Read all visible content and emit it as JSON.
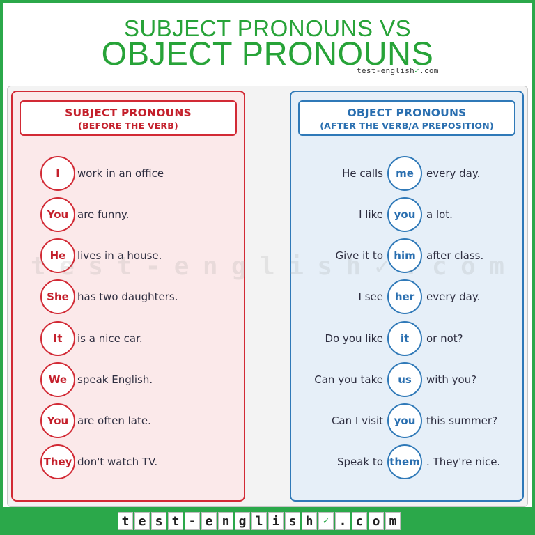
{
  "header": {
    "title_line1": "SUBJECT PRONOUNS VS",
    "title_line2": "OBJECT PRONOUNS",
    "brand_text": "test-english",
    "brand_check": "✓",
    "brand_suffix": ".com"
  },
  "subject_panel": {
    "heading": "SUBJECT PRONOUNS",
    "subheading": "(BEFORE THE VERB)",
    "rows": [
      {
        "pronoun": "I",
        "text": "work in an office"
      },
      {
        "pronoun": "You",
        "text": "are funny."
      },
      {
        "pronoun": "He",
        "text": "lives in a house."
      },
      {
        "pronoun": "She",
        "text": "has two daughters."
      },
      {
        "pronoun": "It",
        "text": "is a nice car."
      },
      {
        "pronoun": "We",
        "text": "speak English."
      },
      {
        "pronoun": "You",
        "text": "are often late."
      },
      {
        "pronoun": "They",
        "text": "don't watch TV."
      }
    ]
  },
  "object_panel": {
    "heading": "OBJECT PRONOUNS",
    "subheading": "(AFTER THE VERB/A PREPOSITION)",
    "rows": [
      {
        "before": "He calls",
        "pronoun": "me",
        "after": "every day."
      },
      {
        "before": "I like",
        "pronoun": "you",
        "after": "a lot."
      },
      {
        "before": "Give it to",
        "pronoun": "him",
        "after": "after class."
      },
      {
        "before": "I see",
        "pronoun": "her",
        "after": "every day."
      },
      {
        "before": "Do you like",
        "pronoun": "it",
        "after": "or not?"
      },
      {
        "before": "Can you take",
        "pronoun": "us",
        "after": "with you?"
      },
      {
        "before": "Can I visit",
        "pronoun": "you",
        "after": "this summer?"
      },
      {
        "before": "Speak to",
        "pronoun": "them",
        "after": ". They're nice."
      }
    ]
  },
  "watermark": {
    "chars": [
      "t",
      "e",
      "s",
      "t",
      "-",
      "e",
      "n",
      "g",
      "l",
      "i",
      "s",
      "h",
      "✓",
      ".",
      "c",
      "o",
      "m"
    ]
  },
  "footer": {
    "logo_chars": [
      "t",
      "e",
      "s",
      "t",
      "-",
      "e",
      "n",
      "g",
      "l",
      "i",
      "s",
      "h",
      "✓",
      ".",
      "c",
      "o",
      "m"
    ]
  },
  "colors": {
    "brand_green": "#2ba84a",
    "subject_red": "#d22a35",
    "object_blue": "#2f79b8"
  }
}
